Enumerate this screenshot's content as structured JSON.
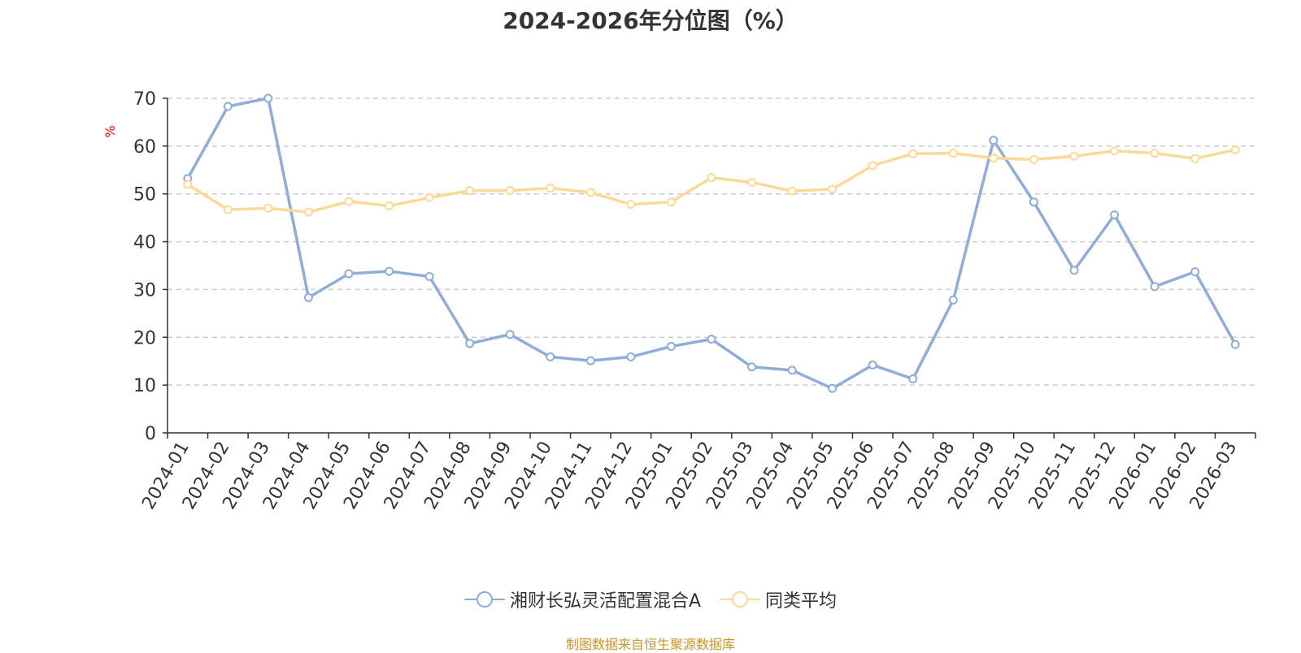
{
  "chart_data": {
    "type": "line",
    "title": "2024-2026年分位图（%）",
    "ylabel": "%",
    "xlabel": "",
    "ylim": [
      0,
      70
    ],
    "yticks": [
      0,
      10,
      20,
      30,
      40,
      50,
      60,
      70
    ],
    "grid": true,
    "legend_position": "bottom",
    "categories": [
      "2024-01",
      "2024-02",
      "2024-03",
      "2024-04",
      "2024-05",
      "2024-06",
      "2024-07",
      "2024-08",
      "2024-09",
      "2024-10",
      "2024-11",
      "2024-12",
      "2025-01",
      "2025-02",
      "2025-03",
      "2025-04",
      "2025-05",
      "2025-06",
      "2025-07",
      "2025-08",
      "2025-09",
      "2025-10",
      "2025-11",
      "2025-12",
      "2026-01",
      "2026-02",
      "2026-03"
    ],
    "series": [
      {
        "name": "湘财长弘灵活配置混合A",
        "color": "#8eadd9",
        "values": [
          53.2,
          68.3,
          70.0,
          28.3,
          33.3,
          33.8,
          32.7,
          18.7,
          20.6,
          15.9,
          15.1,
          15.9,
          18.1,
          19.6,
          13.8,
          13.1,
          9.3,
          14.2,
          11.3,
          27.8,
          61.2,
          48.3,
          34.0,
          45.6,
          30.6,
          33.7,
          18.5
        ]
      },
      {
        "name": "同类平均",
        "color": "#fbd997",
        "values": [
          52.0,
          46.7,
          47.0,
          46.2,
          48.4,
          47.5,
          49.2,
          50.7,
          50.7,
          51.2,
          50.3,
          47.8,
          48.3,
          53.4,
          52.4,
          50.6,
          51.0,
          55.9,
          58.4,
          58.5,
          57.5,
          57.2,
          57.9,
          59.0,
          58.5,
          57.4,
          59.2
        ]
      }
    ]
  },
  "source_note": "制图数据来自恒生聚源数据库"
}
